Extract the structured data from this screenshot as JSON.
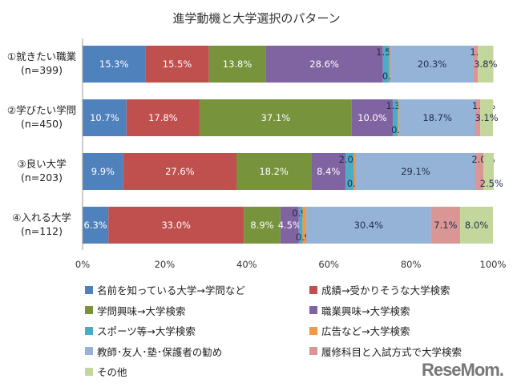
{
  "chart_data": {
    "type": "bar",
    "orientation": "horizontal",
    "stacked": true,
    "title": "進学動機と大学選択のパターン",
    "categories": [
      [
        "①就きたい職業",
        "(n=399)"
      ],
      [
        "②学びたい学問",
        "(n=450)"
      ],
      [
        "③良い大学",
        "(n=203)"
      ],
      [
        "④入れる大学",
        "(n=112)"
      ]
    ],
    "xlim": [
      0,
      100
    ],
    "xticks": [
      "0%",
      "20%",
      "40%",
      "60%",
      "80%",
      "100%"
    ],
    "grid": false,
    "legend_placement": "bottom",
    "series": [
      {
        "name": "名前を知っている大学→学問など",
        "color": "#4f81bd",
        "values": [
          15.3,
          10.7,
          9.9,
          6.3
        ]
      },
      {
        "name": "成績→受かりそうな大学検索",
        "color": "#c0504d",
        "values": [
          15.5,
          17.8,
          27.6,
          33.0
        ]
      },
      {
        "name": "学問興味→大学検索",
        "color": "#77933c",
        "values": [
          13.8,
          37.1,
          18.2,
          8.9
        ]
      },
      {
        "name": "職業興味→大学検索",
        "color": "#8064a2",
        "values": [
          28.6,
          10.0,
          8.4,
          4.5
        ]
      },
      {
        "name": "スポーツ等→大学検索",
        "color": "#4bacc6",
        "values": [
          1.5,
          1.3,
          2.0,
          0.9
        ]
      },
      {
        "name": "広告など→大学検索",
        "color": "#f79646",
        "values": [
          0.3,
          0.2,
          0.5,
          0.9
        ]
      },
      {
        "name": "教師･友人･塾･保護者の勧め",
        "color": "#95b3d7",
        "values": [
          20.3,
          18.7,
          29.1,
          30.4
        ]
      },
      {
        "name": "履修科目と入試方式で大学検索",
        "color": "#d99694",
        "values": [
          1.0,
          1.1,
          2.0,
          7.1
        ]
      },
      {
        "name": "その他",
        "color": "#c3d69b",
        "values": [
          3.8,
          3.1,
          2.5,
          8.0
        ]
      }
    ]
  },
  "logo": "ReseMom"
}
